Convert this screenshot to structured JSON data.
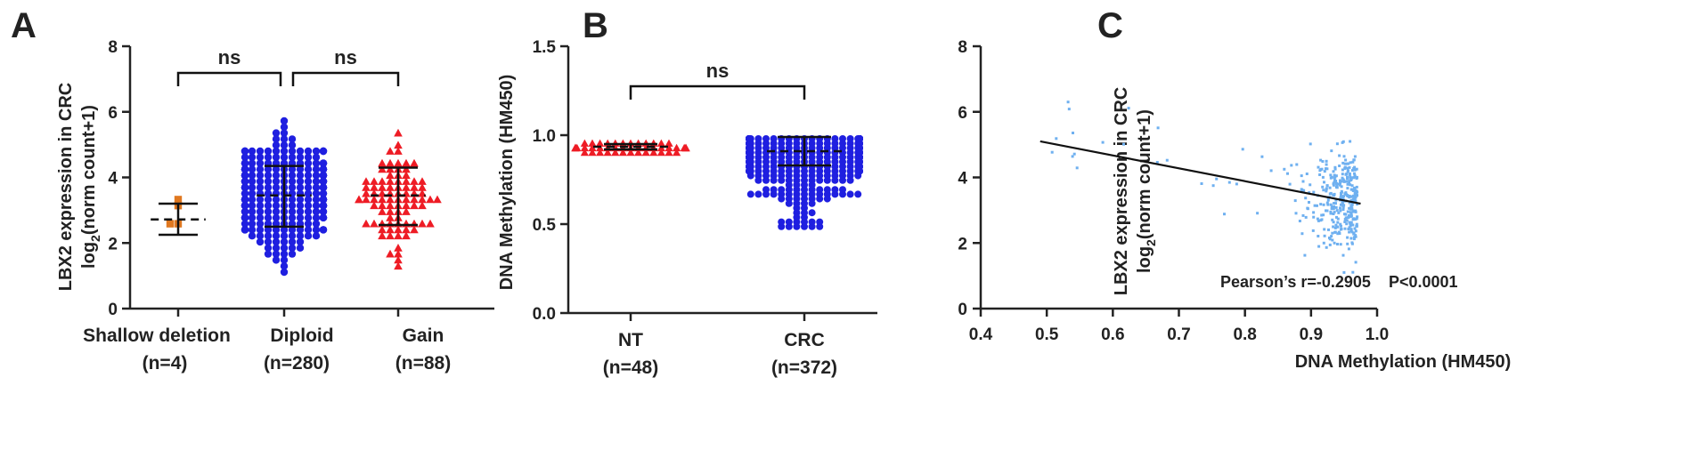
{
  "panels": {
    "a": "A",
    "b": "B",
    "c": "C"
  },
  "chart_data": [
    {
      "type": "scatter",
      "ylabel_line1": "LBX2 expression in CRC",
      "ylabel_line2_prefix": "log",
      "ylabel_line2_sub": "2",
      "ylabel_line2_suffix": "(norm count+1)",
      "ylim": [
        0,
        8
      ],
      "yticks": [
        "0",
        "2",
        "4",
        "6",
        "8"
      ],
      "categories": [
        {
          "name": "Shallow deletion",
          "n": "(n=4)",
          "color": "#e07820",
          "marker": "square",
          "count": 4,
          "mean": 2.72,
          "sd_low": 2.25,
          "sd_high": 3.2,
          "min": 2.1,
          "max": 3.3
        },
        {
          "name": "Diploid",
          "n": "(n=280)",
          "color": "#1f1fe0",
          "marker": "circle",
          "count": 280,
          "mean": 3.45,
          "sd_low": 2.5,
          "sd_high": 4.35,
          "min": 1.15,
          "max": 6.3
        },
        {
          "name": "Gain",
          "n": "(n=88)",
          "color": "#ee1c25",
          "marker": "triangle",
          "count": 88,
          "mean": 3.45,
          "sd_low": 2.55,
          "sd_high": 4.3,
          "min": 1.3,
          "max": 5.9
        }
      ],
      "significance": [
        {
          "label": "ns",
          "from": 0,
          "to": 1
        },
        {
          "label": "ns",
          "from": 1,
          "to": 2
        }
      ]
    },
    {
      "type": "scatter",
      "ylabel": "DNA Methylation (HM450)",
      "ylim": [
        0,
        1.5
      ],
      "yticks": [
        "0.0",
        "0.5",
        "1.0",
        "1.5"
      ],
      "categories": [
        {
          "name": "NT",
          "n": "(n=48)",
          "color": "#ee1c25",
          "marker": "triangle",
          "count": 48,
          "mean": 0.935,
          "sd_low": 0.92,
          "sd_high": 0.95,
          "min": 0.9,
          "max": 0.96
        },
        {
          "name": "CRC",
          "n": "(n=372)",
          "color": "#1f1fe0",
          "marker": "circle",
          "count": 372,
          "mean": 0.91,
          "sd_low": 0.83,
          "sd_high": 0.99,
          "min": 0.49,
          "max": 0.98
        }
      ],
      "significance": [
        {
          "label": "ns",
          "from": 0,
          "to": 1
        }
      ]
    },
    {
      "type": "scatter",
      "xlabel": "DNA Methylation (HM450)",
      "ylabel_line1": "LBX2 expression in CRC",
      "ylabel_line2_prefix": "log",
      "ylabel_line2_sub": "2",
      "ylabel_line2_suffix": "(norm count+1)",
      "xlim": [
        0.4,
        1.0
      ],
      "ylim": [
        0,
        8
      ],
      "xticks": [
        "0.4",
        "0.5",
        "0.6",
        "0.7",
        "0.8",
        "0.9",
        "1.0"
      ],
      "yticks": [
        "0",
        "2",
        "4",
        "6",
        "8"
      ],
      "point_color": "#6fb0f0",
      "point_count": 372,
      "regression_line": {
        "x1": 0.49,
        "y1": 5.1,
        "x2": 0.975,
        "y2": 3.2,
        "color": "#111111"
      },
      "annotation": "Pearson’s r=-0.2905    P<0.0001"
    }
  ]
}
